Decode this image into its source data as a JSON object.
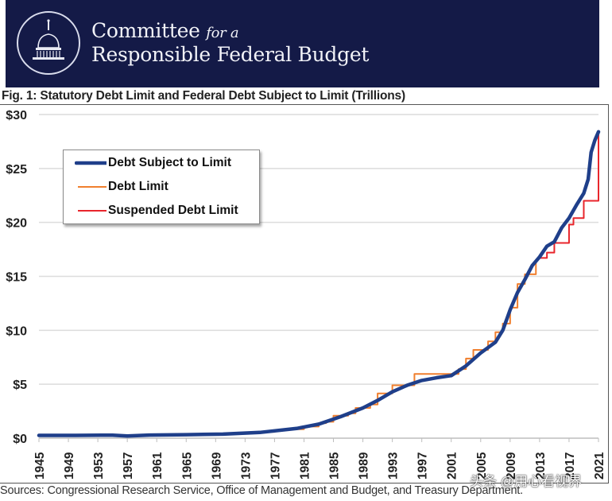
{
  "header": {
    "org_line1": "Committee",
    "org_line1_italic": "for a",
    "org_line2": "Responsible Federal Budget",
    "banner_color": "#141a47"
  },
  "figure": {
    "sources": "Sources: Congressional Research Service, Office of Management and Budget, and Treasury Department.",
    "watermark": "头条 @用心看视界"
  },
  "chart_data": {
    "type": "line",
    "title": "Fig. 1: Statutory Debt Limit and Federal Debt Subject to Limit (Trillions)",
    "xlabel": "",
    "ylabel": "",
    "xlim": [
      1945,
      2021
    ],
    "ylim": [
      0,
      30
    ],
    "grid": true,
    "legend_position": "top-left",
    "y_ticks": [
      0,
      5,
      10,
      15,
      20,
      25,
      30
    ],
    "y_tick_labels": [
      "$0",
      "$5",
      "$10",
      "$15",
      "$20",
      "$25",
      "$30"
    ],
    "x_ticks": [
      1945,
      1949,
      1953,
      1957,
      1961,
      1965,
      1969,
      1973,
      1977,
      1981,
      1985,
      1989,
      1993,
      1997,
      2001,
      2005,
      2009,
      2013,
      2017,
      2021
    ],
    "x_tick_labels": [
      "1945",
      "1949",
      "1953",
      "1957",
      "1961",
      "1965",
      "1969",
      "1973",
      "1977",
      "1981",
      "1985",
      "1989",
      "1993",
      "1997",
      "2001",
      "2005",
      "2009",
      "2013",
      "2017",
      "2021"
    ],
    "series": [
      {
        "name": "Debt Subject to Limit",
        "color": "#1f3f8a",
        "style": "line",
        "x": [
          1945,
          1950,
          1955,
          1957,
          1960,
          1965,
          1970,
          1975,
          1980,
          1983,
          1986,
          1989,
          1991,
          1993,
          1995,
          1997,
          1999,
          2001,
          2003,
          2005,
          2007,
          2008,
          2009,
          2010,
          2011,
          2012,
          2013,
          2014,
          2015,
          2016,
          2017,
          2018,
          2019,
          2019.6,
          2020,
          2020.5,
          2021
        ],
        "y": [
          0.26,
          0.26,
          0.28,
          0.2,
          0.29,
          0.32,
          0.38,
          0.53,
          0.9,
          1.3,
          2.0,
          2.8,
          3.5,
          4.3,
          4.9,
          5.35,
          5.6,
          5.8,
          6.7,
          7.9,
          8.9,
          10.0,
          11.9,
          13.5,
          14.7,
          16.0,
          16.8,
          17.8,
          18.2,
          19.5,
          20.4,
          21.6,
          22.7,
          24.0,
          26.5,
          27.6,
          28.4
        ]
      },
      {
        "name": "Debt Limit",
        "color": "#f07f2e",
        "style": "step",
        "x": [
          1945,
          1954,
          1955,
          1957,
          1958,
          1962,
          1964,
          1967,
          1969,
          1971,
          1973,
          1975,
          1977,
          1979,
          1981,
          1983,
          1984,
          1985,
          1987,
          1988,
          1990,
          1991,
          1993,
          1996,
          2002,
          2003,
          2004,
          2006,
          2007,
          2008,
          2009,
          2010,
          2011,
          2012.5
        ],
        "y": [
          0.3,
          0.3,
          0.28,
          0.28,
          0.29,
          0.3,
          0.31,
          0.36,
          0.38,
          0.43,
          0.48,
          0.58,
          0.75,
          0.83,
          1.08,
          1.39,
          1.52,
          2.08,
          2.3,
          2.8,
          3.12,
          4.15,
          4.9,
          5.95,
          6.4,
          7.38,
          8.18,
          8.97,
          9.82,
          10.62,
          12.1,
          14.29,
          15.19,
          16.39
        ]
      },
      {
        "name": "Suspended Debt Limit",
        "color": "#e8262c",
        "style": "step",
        "x": [
          2013,
          2014,
          2015,
          2016,
          2017,
          2017.6,
          2018,
          2019,
          2019.6,
          2021
        ],
        "y": [
          16.7,
          17.2,
          18.1,
          18.1,
          19.8,
          20.4,
          20.4,
          22.0,
          22.0,
          28.4
        ]
      }
    ]
  }
}
